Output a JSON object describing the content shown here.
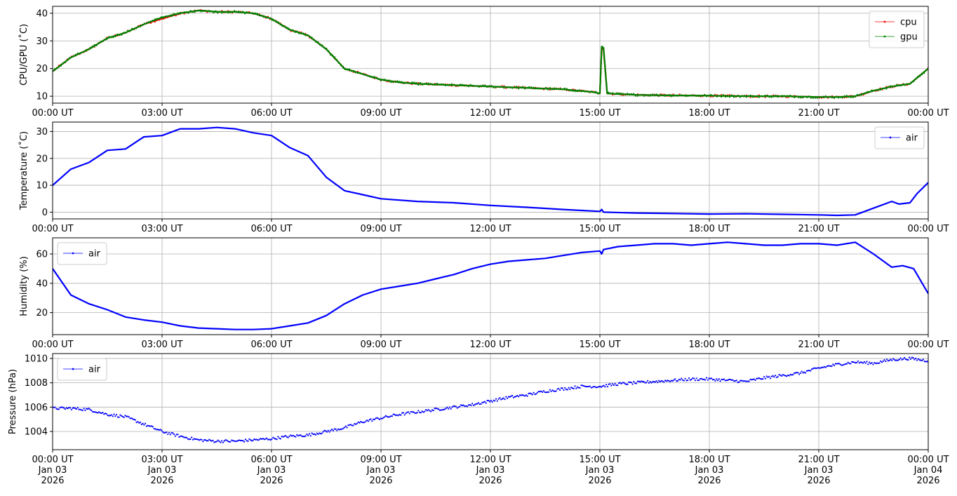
{
  "chart_data": [
    {
      "type": "line",
      "ylabel": "CPU/GPU (˚C)",
      "ylim": [
        7.5,
        42.5
      ],
      "yticks": [
        10,
        20,
        30,
        40
      ],
      "xlim": [
        0,
        24
      ],
      "xticks": [
        0,
        3,
        6,
        9,
        12,
        15,
        18,
        21,
        24
      ],
      "xtick_labels": [
        "00:00 UT",
        "03:00 UT",
        "06:00 UT",
        "09:00 UT",
        "12:00 UT",
        "15:00 UT",
        "18:00 UT",
        "21:00 UT",
        "00:00 UT"
      ],
      "grid": true,
      "legend": "top-right",
      "series": [
        {
          "name": "cpu",
          "color": "#ff0000",
          "x": [
            0,
            0.5,
            1.0,
            1.5,
            2.0,
            2.5,
            3.0,
            3.5,
            4.0,
            4.5,
            5.0,
            5.5,
            6.0,
            6.5,
            7.0,
            7.5,
            8.0,
            8.5,
            9.0,
            9.5,
            10.0,
            11.0,
            12.0,
            13.0,
            14.0,
            14.8,
            15.0,
            15.05,
            15.1,
            15.2,
            15.5,
            16.0,
            17.0,
            18.0,
            19.0,
            20.0,
            21.0,
            21.5,
            22.0,
            22.5,
            23.0,
            23.5,
            24.0
          ],
          "y": [
            19,
            24,
            27,
            31,
            33,
            36,
            38,
            40,
            41,
            40.5,
            40.5,
            40,
            38,
            34,
            32,
            27,
            20,
            18,
            16,
            15,
            14.5,
            14,
            13.5,
            13,
            12.5,
            11.5,
            11,
            27.5,
            27,
            11,
            10.8,
            10.5,
            10.3,
            10.2,
            10,
            10,
            9.7,
            9.7,
            10,
            12,
            13.5,
            14.5,
            20
          ]
        },
        {
          "name": "gpu",
          "color": "#008000",
          "x": [
            0,
            0.5,
            1.0,
            1.5,
            2.0,
            2.5,
            3.0,
            3.5,
            4.0,
            4.5,
            5.0,
            5.5,
            6.0,
            6.5,
            7.0,
            7.5,
            8.0,
            8.5,
            9.0,
            9.5,
            10.0,
            11.0,
            12.0,
            13.0,
            14.0,
            14.8,
            15.0,
            15.05,
            15.1,
            15.2,
            15.5,
            16.0,
            17.0,
            18.0,
            19.0,
            20.0,
            21.0,
            21.5,
            22.0,
            22.5,
            23.0,
            23.5,
            24.0
          ],
          "y": [
            19,
            24,
            27,
            31,
            33,
            36,
            38.5,
            40,
            41,
            40.5,
            40.5,
            40,
            38,
            34,
            32,
            27,
            20,
            18,
            16,
            15,
            14.5,
            14,
            13.5,
            13,
            12.5,
            11.5,
            11,
            28,
            27.5,
            11,
            10.8,
            10.5,
            10.3,
            10.2,
            10,
            10,
            9.7,
            9.7,
            10,
            12,
            13.5,
            14.5,
            20
          ]
        }
      ]
    },
    {
      "type": "line",
      "ylabel": "Temperature (˚C)",
      "ylim": [
        -2.5,
        33.5
      ],
      "yticks": [
        0,
        10,
        20,
        30
      ],
      "xlim": [
        0,
        24
      ],
      "xticks": [
        0,
        3,
        6,
        9,
        12,
        15,
        18,
        21,
        24
      ],
      "xtick_labels": [
        "00:00 UT",
        "03:00 UT",
        "06:00 UT",
        "09:00 UT",
        "12:00 UT",
        "15:00 UT",
        "18:00 UT",
        "21:00 UT",
        "00:00 UT"
      ],
      "grid": true,
      "legend": "top-right",
      "series": [
        {
          "name": "air",
          "color": "#0000ff",
          "x": [
            0,
            0.5,
            1.0,
            1.5,
            2.0,
            2.5,
            3.0,
            3.5,
            4.0,
            4.5,
            5.0,
            5.5,
            6.0,
            6.5,
            7.0,
            7.5,
            8.0,
            8.5,
            9.0,
            10.0,
            11.0,
            12.0,
            13.0,
            14.0,
            15.0,
            15.05,
            15.1,
            16.0,
            17.0,
            18.0,
            19.0,
            20.0,
            21.0,
            21.5,
            22.0,
            22.5,
            23.0,
            23.2,
            23.5,
            23.7,
            24.0
          ],
          "y": [
            10,
            16,
            18.5,
            23,
            23.5,
            28,
            28.5,
            31,
            31,
            31.5,
            31,
            29.5,
            28.5,
            24,
            21,
            13,
            8,
            6.5,
            5,
            4,
            3.5,
            2.5,
            1.8,
            1,
            0.3,
            1,
            0,
            -0.3,
            -0.5,
            -0.7,
            -0.6,
            -0.8,
            -1,
            -1.2,
            -1,
            1.5,
            4,
            3,
            3.5,
            7,
            11
          ]
        }
      ]
    },
    {
      "type": "line",
      "ylabel": "Humidity (%)",
      "ylim": [
        5,
        71
      ],
      "yticks": [
        20,
        40,
        60
      ],
      "xlim": [
        0,
        24
      ],
      "xticks": [
        0,
        3,
        6,
        9,
        12,
        15,
        18,
        21,
        24
      ],
      "xtick_labels": [
        "00:00 UT",
        "03:00 UT",
        "06:00 UT",
        "09:00 UT",
        "12:00 UT",
        "15:00 UT",
        "18:00 UT",
        "21:00 UT",
        "00:00 UT"
      ],
      "grid": true,
      "legend": "top-left",
      "series": [
        {
          "name": "air",
          "color": "#0000ff",
          "x": [
            0,
            0.5,
            1.0,
            1.5,
            2.0,
            2.5,
            3.0,
            3.5,
            4.0,
            4.5,
            5.0,
            5.5,
            6.0,
            6.5,
            7.0,
            7.5,
            8.0,
            8.5,
            9.0,
            9.5,
            10.0,
            10.5,
            11.0,
            11.5,
            12.0,
            12.5,
            13.0,
            13.5,
            14.0,
            14.5,
            15.0,
            15.05,
            15.1,
            15.5,
            16.0,
            16.5,
            17.0,
            17.5,
            18.0,
            18.5,
            19.0,
            19.5,
            20.0,
            20.5,
            21.0,
            21.5,
            22.0,
            22.5,
            23.0,
            23.3,
            23.6,
            24.0
          ],
          "y": [
            50,
            32,
            26,
            22,
            17,
            15,
            13.5,
            11,
            9.5,
            9,
            8.5,
            8.5,
            9,
            11,
            13,
            18,
            26,
            32,
            36,
            38,
            40,
            43,
            46,
            50,
            53,
            55,
            56,
            57,
            59,
            61,
            62,
            60,
            63,
            65,
            66,
            67,
            67,
            66,
            67,
            68,
            67,
            66,
            66,
            67,
            67,
            66,
            68,
            60,
            51,
            52,
            50,
            33
          ]
        }
      ]
    },
    {
      "type": "scatter",
      "ylabel": "Pressure (hPa)",
      "ylim": [
        1002.5,
        1010.4
      ],
      "yticks": [
        1004,
        1006,
        1008,
        1010
      ],
      "xlim": [
        0,
        24
      ],
      "xticks": [
        0,
        3,
        6,
        9,
        12,
        15,
        18,
        21,
        24
      ],
      "xtick_labels": [
        [
          "00:00 UT",
          "Jan 03",
          "2026"
        ],
        [
          "03:00 UT",
          "Jan 03",
          "2026"
        ],
        [
          "06:00 UT",
          "Jan 03",
          "2026"
        ],
        [
          "09:00 UT",
          "Jan 03",
          "2026"
        ],
        [
          "12:00 UT",
          "Jan 03",
          "2026"
        ],
        [
          "15:00 UT",
          "Jan 03",
          "2026"
        ],
        [
          "18:00 UT",
          "Jan 03",
          "2026"
        ],
        [
          "21:00 UT",
          "Jan 03",
          "2026"
        ],
        [
          "00:00 UT",
          "Jan 04",
          "2026"
        ]
      ],
      "grid": true,
      "legend": "top-left",
      "series": [
        {
          "name": "air",
          "color": "#0000ff",
          "x": [
            0,
            0.5,
            1.0,
            1.5,
            2.0,
            2.5,
            3.0,
            3.5,
            4.0,
            4.5,
            5.0,
            5.5,
            6.0,
            6.5,
            7.0,
            7.5,
            8.0,
            8.5,
            9.0,
            9.5,
            10.0,
            10.5,
            11.0,
            11.5,
            12.0,
            12.5,
            13.0,
            13.5,
            14.0,
            14.5,
            15.0,
            15.5,
            16.0,
            16.5,
            17.0,
            17.5,
            18.0,
            18.5,
            19.0,
            19.5,
            20.0,
            20.5,
            21.0,
            21.5,
            22.0,
            22.5,
            23.0,
            23.5,
            24.0
          ],
          "y": [
            1005.9,
            1005.9,
            1005.8,
            1005.4,
            1005.2,
            1004.6,
            1004.0,
            1003.6,
            1003.3,
            1003.2,
            1003.2,
            1003.3,
            1003.4,
            1003.6,
            1003.7,
            1004.0,
            1004.3,
            1004.8,
            1005.1,
            1005.4,
            1005.6,
            1005.8,
            1006.0,
            1006.2,
            1006.5,
            1006.8,
            1007.0,
            1007.3,
            1007.5,
            1007.7,
            1007.7,
            1007.9,
            1008.0,
            1008.1,
            1008.2,
            1008.3,
            1008.3,
            1008.2,
            1008.1,
            1008.4,
            1008.6,
            1008.8,
            1009.2,
            1009.5,
            1009.7,
            1009.6,
            1009.9,
            1010.0,
            1009.8
          ]
        }
      ]
    }
  ]
}
